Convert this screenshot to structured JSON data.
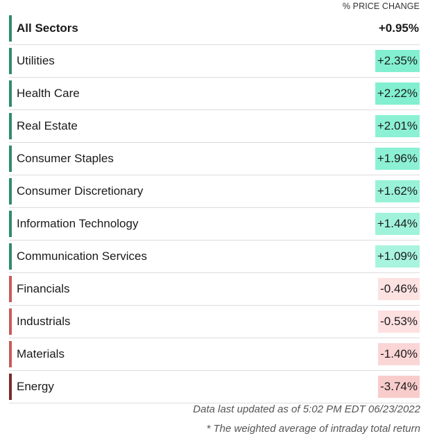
{
  "header": {
    "column_label": "% PRICE CHANGE"
  },
  "colors": {
    "positive_bar": "#2e8b6e",
    "negative_bar": "#c85a5a",
    "energy_bar": "#7a2a2a",
    "total_bar": "#2e8b6e",
    "positive_fill_strong": "#7ff0d0",
    "positive_fill": "#a6f3dd",
    "negative_fill_light": "#fde4e4",
    "negative_fill": "#fbd3d3",
    "negative_fill_strong": "#f8c3c3"
  },
  "rows": [
    {
      "label": "All Sectors",
      "value": "+0.95%",
      "type": "total"
    },
    {
      "label": "Utilities",
      "value": "+2.35%",
      "type": "pos",
      "fill": "#82f0d0"
    },
    {
      "label": "Health Care",
      "value": "+2.22%",
      "type": "pos",
      "fill": "#82f0d0"
    },
    {
      "label": "Real Estate",
      "value": "+2.01%",
      "type": "pos",
      "fill": "#8cf1d4"
    },
    {
      "label": "Consumer Staples",
      "value": "+1.96%",
      "type": "pos",
      "fill": "#8cf1d4"
    },
    {
      "label": "Consumer Discretionary",
      "value": "+1.62%",
      "type": "pos",
      "fill": "#99f2d8"
    },
    {
      "label": "Information Technology",
      "value": "+1.44%",
      "type": "pos",
      "fill": "#a0f3da"
    },
    {
      "label": "Communication Services",
      "value": "+1.09%",
      "type": "pos",
      "fill": "#a8f4de"
    },
    {
      "label": "Financials",
      "value": "-0.46%",
      "type": "neg",
      "fill": "#fde2e2"
    },
    {
      "label": "Industrials",
      "value": "-0.53%",
      "type": "neg",
      "fill": "#fde0e0"
    },
    {
      "label": "Materials",
      "value": "-1.40%",
      "type": "neg",
      "fill": "#fbd6d6"
    },
    {
      "label": "Energy",
      "value": "-3.74%",
      "type": "neg-strong",
      "fill": "#f9cccc"
    }
  ],
  "footer": {
    "updated": "Data last updated as of 5:02 PM EDT 06/23/2022",
    "note": "* The weighted average of intraday total return"
  }
}
